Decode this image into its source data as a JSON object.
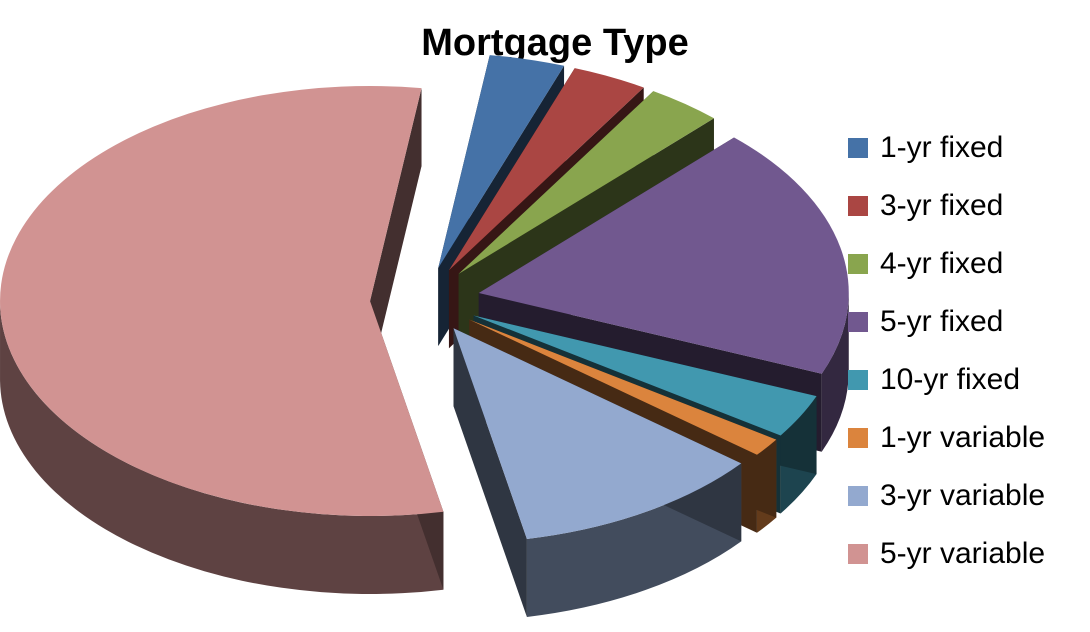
{
  "chart_data": {
    "type": "pie",
    "style": "3d-exploded",
    "title": "Mortgage Type",
    "legend_position": "right",
    "slices": [
      {
        "label": "1-yr fixed",
        "value": 3.3,
        "color": "#4572A7"
      },
      {
        "label": "3-yr fixed",
        "value": 3.3,
        "color": "#AA4643"
      },
      {
        "label": "4-yr fixed",
        "value": 3.3,
        "color": "#89A54E"
      },
      {
        "label": "5-yr fixed",
        "value": 19.0,
        "color": "#71588F"
      },
      {
        "label": "10-yr fixed",
        "value": 3.3,
        "color": "#4198AF"
      },
      {
        "label": "1-yr variable",
        "value": 1.4,
        "color": "#DB843D"
      },
      {
        "label": "3-yr variable",
        "value": 11.0,
        "color": "#93A9CF"
      },
      {
        "label": "5-yr variable",
        "value": 55.4,
        "color": "#D19392"
      }
    ]
  }
}
